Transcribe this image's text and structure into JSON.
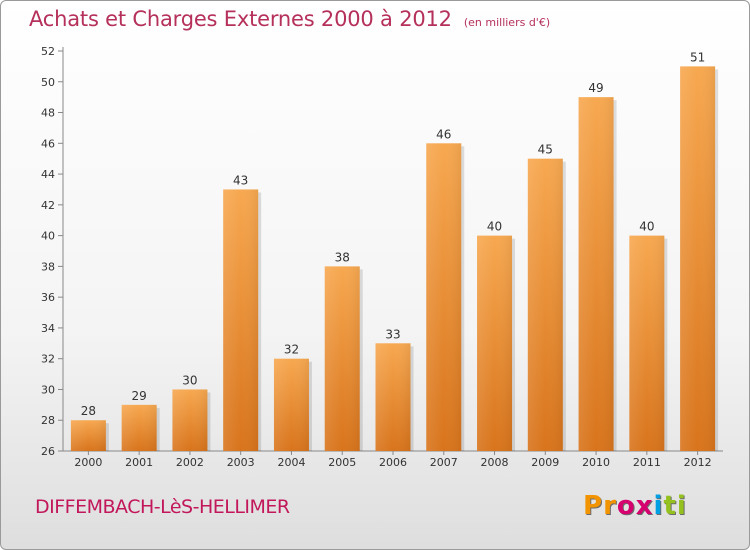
{
  "header": {
    "title": "Achats et Charges Externes 2000 à 2012",
    "subtitle": "(en milliers d'€)"
  },
  "footer": {
    "commune": "DIFFEMBACH-LèS-HELLIMER",
    "logo": [
      "P",
      "r",
      "o",
      "x",
      "i",
      "t",
      "i"
    ],
    "logo_colors": [
      "#f29400",
      "#f29400",
      "#d6006f",
      "#d6006f",
      "#009fe3",
      "#95c11f",
      "#95c11f"
    ]
  },
  "chart_data": {
    "type": "bar",
    "categories": [
      "2000",
      "2001",
      "2002",
      "2003",
      "2004",
      "2005",
      "2006",
      "2007",
      "2008",
      "2009",
      "2010",
      "2011",
      "2012"
    ],
    "values": [
      28,
      29,
      30,
      43,
      32,
      38,
      33,
      46,
      40,
      45,
      49,
      40,
      51
    ],
    "ylim": [
      26,
      52
    ],
    "yticks": [
      26,
      28,
      30,
      32,
      34,
      36,
      38,
      40,
      42,
      44,
      46,
      48,
      50,
      52
    ],
    "grid": false,
    "bar_color_top": "#f7a850",
    "bar_color_bottom": "#d8741c"
  }
}
